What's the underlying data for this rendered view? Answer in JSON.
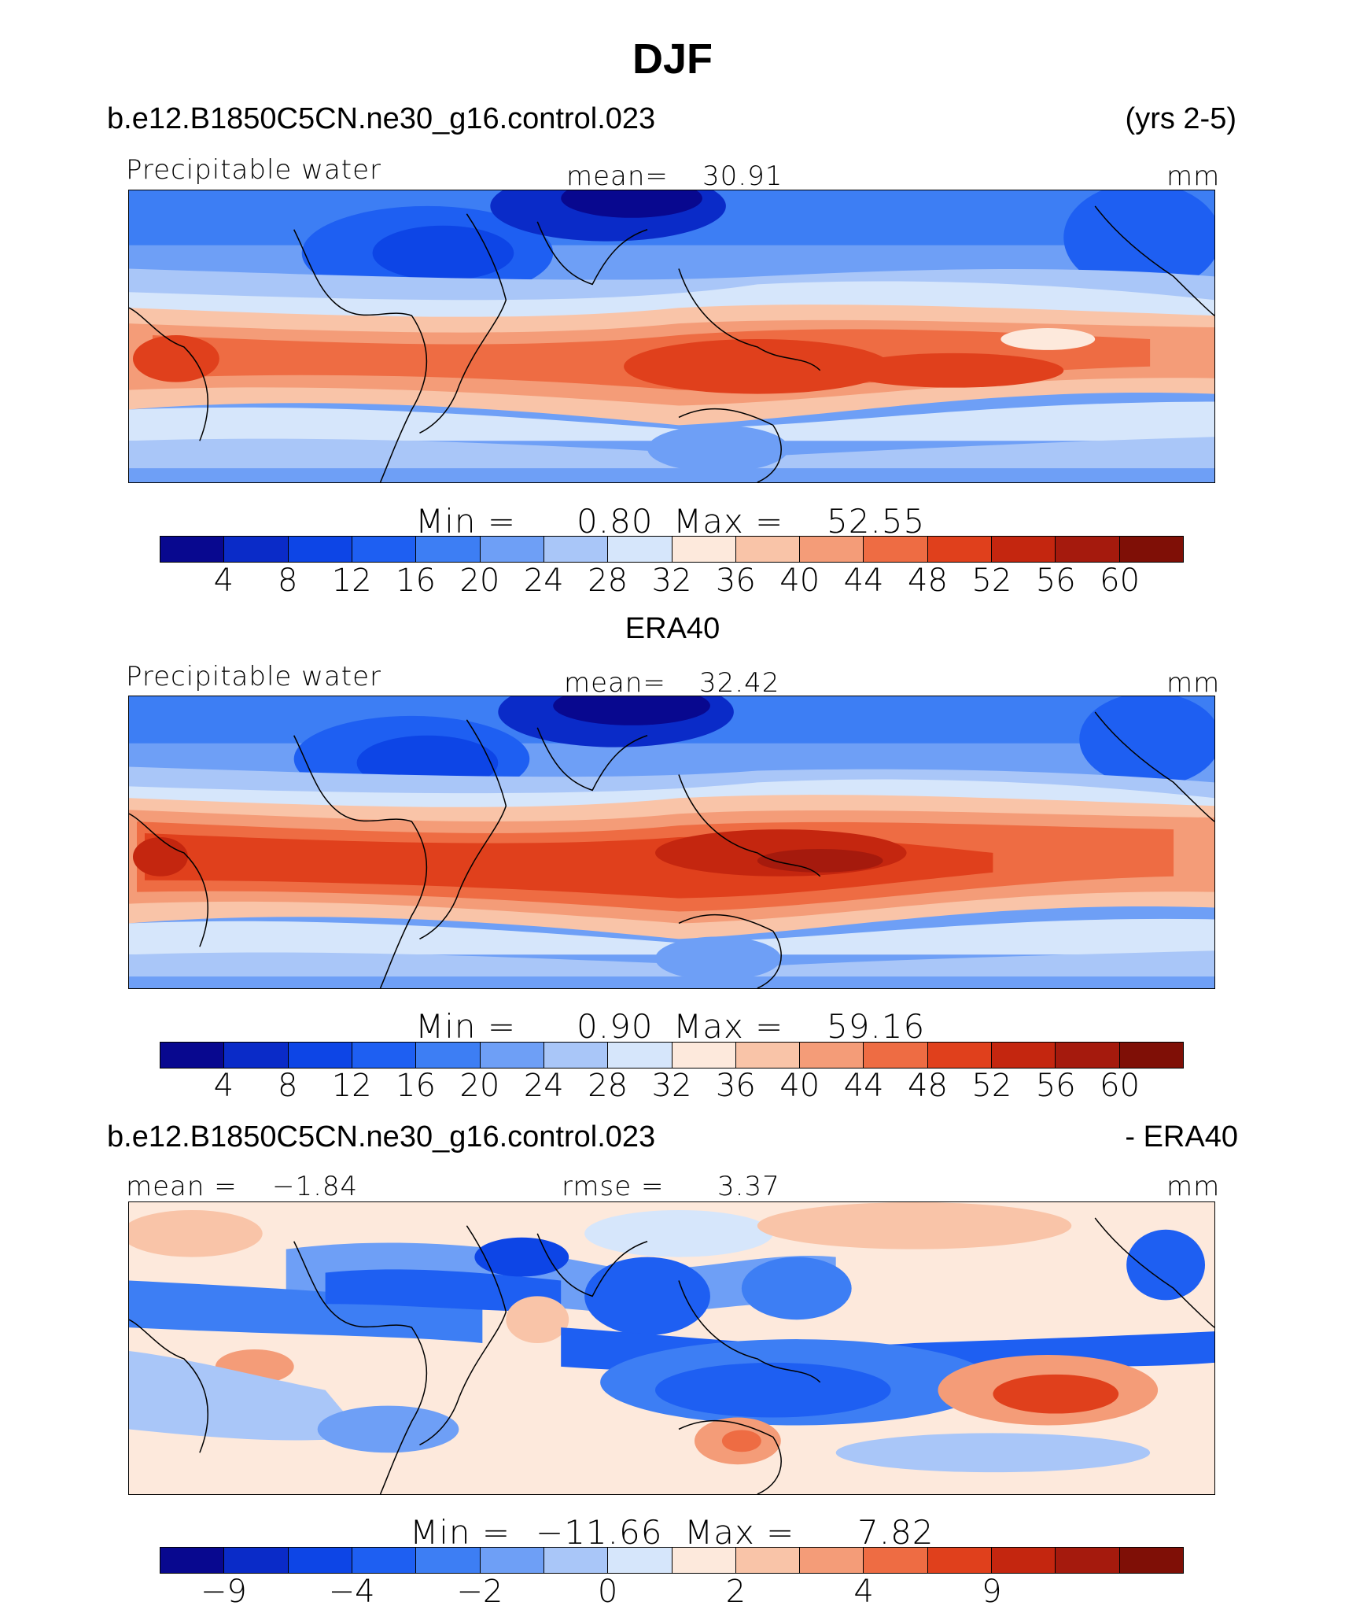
{
  "title": "DJF",
  "palette": [
    "#08088f",
    "#0a2bc8",
    "#0d45e6",
    "#1e5ff2",
    "#3d7ef4",
    "#6e9ff6",
    "#a9c6f8",
    "#d6e6fb",
    "#fde9dc",
    "#f9c4a8",
    "#f49c78",
    "#ee6c43",
    "#e0401c",
    "#c4260f",
    "#a51a0d",
    "#7f0f06"
  ],
  "colorbar1_labels": [
    "4",
    "8",
    "12",
    "16",
    "20",
    "24",
    "28",
    "32",
    "36",
    "40",
    "44",
    "48",
    "52",
    "56",
    "60"
  ],
  "colorbar3_labels": [
    "−9",
    "−4",
    "−2",
    "0",
    "2",
    "4",
    "9"
  ],
  "panel1": {
    "case": "b.e12.B1850C5CN.ne30_g16.control.023",
    "years": "(yrs 2-5)",
    "variable": "Precipitable water",
    "mean_label": "mean=",
    "mean_value": "30.91",
    "units": "mm",
    "min_label": "Min =",
    "min_value": "0.80",
    "max_label": "Max =",
    "max_value": "52.55"
  },
  "panel2": {
    "case": "ERA40",
    "variable": "Precipitable water",
    "mean_label": "mean=",
    "mean_value": "32.42",
    "units": "mm",
    "min_label": "Min =",
    "min_value": "0.90",
    "max_label": "Max =",
    "max_value": "59.16"
  },
  "panel3": {
    "case": "b.e12.B1850C5CN.ne30_g16.control.023",
    "minus": "- ERA40",
    "mean_label": "mean =",
    "mean_value": "−1.84",
    "rmse_label": "rmse =",
    "rmse_value": "3.37",
    "units": "mm",
    "min_label": "Min =",
    "min_value": "−11.66",
    "max_label": "Max =",
    "max_value": "7.82"
  }
}
